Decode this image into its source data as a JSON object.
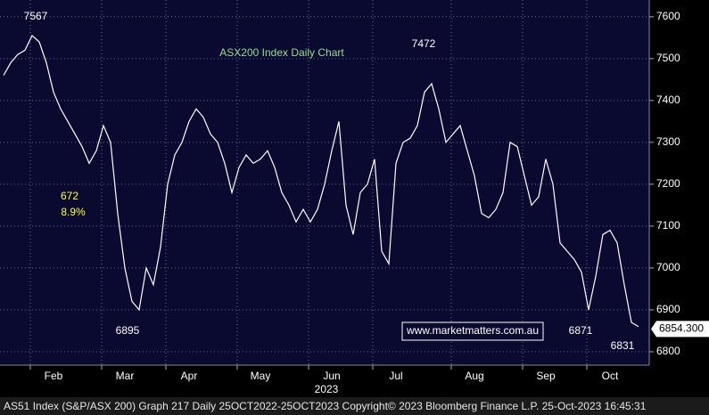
{
  "chart_data": {
    "type": "line",
    "title": "ASX200 Index Daily Chart",
    "watermark": "www.marketmatters.com.au",
    "footer": "AS51 Index (S&P/ASX 200) Graph 217  Daily 25OCT2022-25OCT2023  Copyright© 2023 Bloomberg Finance L.P.  25-Oct-2023 16:45:31",
    "year_label": "2023",
    "categories": [
      null,
      null,
      null,
      null,
      null,
      null,
      null,
      "Feb",
      null,
      null,
      null,
      null,
      null,
      null,
      null,
      null,
      null,
      "Mar",
      null,
      null,
      null,
      null,
      null,
      null,
      null,
      null,
      "Apr",
      null,
      null,
      null,
      null,
      null,
      null,
      null,
      null,
      null,
      "May",
      null,
      null,
      null,
      null,
      null,
      null,
      null,
      null,
      null,
      "Jun",
      null,
      null,
      null,
      null,
      null,
      null,
      null,
      null,
      "Jul",
      null,
      null,
      null,
      null,
      null,
      null,
      null,
      null,
      null,
      null,
      "Aug",
      null,
      null,
      null,
      null,
      null,
      null,
      null,
      null,
      null,
      "Sep",
      null,
      null,
      null,
      null,
      null,
      null,
      null,
      null,
      "Oct",
      null,
      null,
      null,
      null
    ],
    "series": [
      {
        "color": "#ffffff",
        "values": [
          7460,
          7490,
          7510,
          7520,
          7555,
          7540,
          7490,
          7420,
          7380,
          7350,
          7320,
          7290,
          7250,
          7280,
          7340,
          7300,
          7130,
          7000,
          6920,
          6900,
          7000,
          6960,
          7050,
          7200,
          7270,
          7300,
          7350,
          7380,
          7360,
          7320,
          7300,
          7250,
          7180,
          7240,
          7270,
          7250,
          7260,
          7280,
          7240,
          7180,
          7150,
          7110,
          7140,
          7110,
          7140,
          7200,
          7280,
          7350,
          7150,
          7080,
          7180,
          7200,
          7260,
          7040,
          7010,
          7250,
          7300,
          7310,
          7340,
          7420,
          7440,
          7380,
          7300,
          7320,
          7340,
          7280,
          7220,
          7130,
          7120,
          7140,
          7180,
          7300,
          7290,
          7220,
          7150,
          7170,
          7260,
          7200,
          7060,
          7040,
          7020,
          6990,
          6900,
          6980,
          7080,
          7090,
          7060,
          6960,
          6870,
          6860
        ]
      }
    ],
    "ylim": [
      6768,
      7640
    ],
    "yticks": [
      6800,
      6900,
      7000,
      7100,
      7200,
      7300,
      7400,
      7500,
      7600
    ],
    "grid": true,
    "last_price": {
      "value": 6854.3,
      "label": "6854.300"
    },
    "annotations": [
      7567,
      7472,
      6895,
      6871,
      6831,
      672,
      {
        "value": 8.9,
        "label": "8.9%"
      }
    ]
  }
}
